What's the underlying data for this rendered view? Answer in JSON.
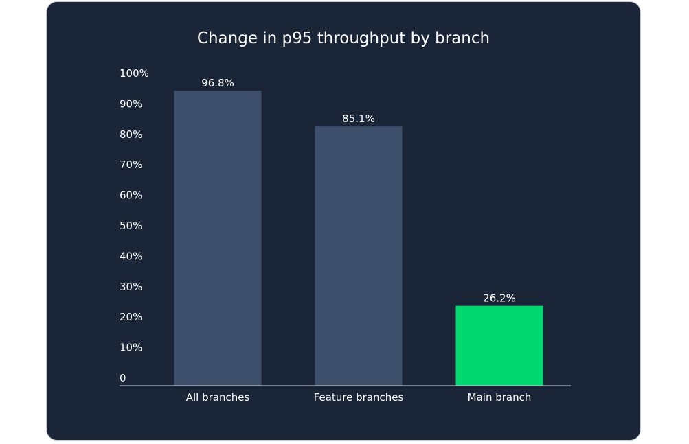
{
  "chart_data": {
    "type": "bar",
    "title": "Change in p95 throughput by branch",
    "xlabel": "",
    "ylabel": "",
    "categories": [
      "All branches",
      "Feature branches",
      "Main branch"
    ],
    "values": [
      96.8,
      85.1,
      26.2
    ],
    "data_labels": [
      "96.8%",
      "85.1%",
      "26.2%"
    ],
    "bar_colors": [
      "#3d4f6b",
      "#3d4f6b",
      "#00d96f"
    ],
    "ylim": [
      0,
      100
    ],
    "yticks": [
      0,
      10,
      20,
      30,
      40,
      50,
      60,
      70,
      80,
      90,
      100
    ],
    "ytick_labels": [
      "0",
      "10%",
      "20%",
      "30%",
      "40%",
      "50%",
      "60%",
      "70%",
      "80%",
      "90%",
      "100%"
    ],
    "grid": false,
    "legend": "none"
  },
  "colors": {
    "background": "#1b2538",
    "border": "#c9d0dc",
    "text": "#ffffff",
    "axis": "#c9d0dc"
  }
}
